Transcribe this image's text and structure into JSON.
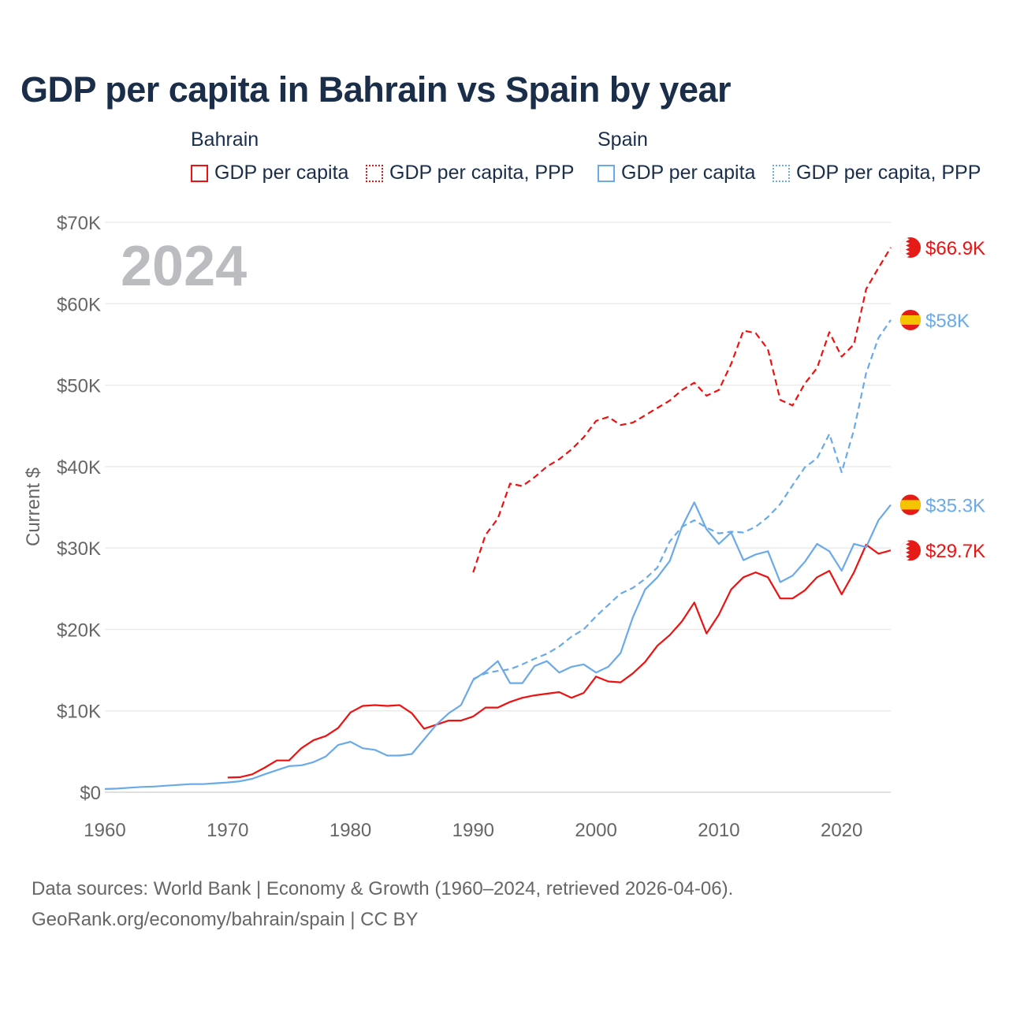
{
  "title": "GDP per capita in Bahrain vs Spain by year",
  "legend": {
    "groups": [
      {
        "name": "Bahrain",
        "items": [
          "GDP per capita",
          "GDP per capita, PPP"
        ]
      },
      {
        "name": "Spain",
        "items": [
          "GDP per capita",
          "GDP per capita, PPP"
        ]
      }
    ]
  },
  "footer": {
    "line1": "Data sources: World Bank | Economy & Growth (1960–2024, retrieved 2026-04-06).",
    "line2": "GeoRank.org/economy/bahrain/spain | CC BY"
  },
  "chart_data": {
    "type": "line",
    "title": "GDP per capita in Bahrain vs Spain by year",
    "year_label": "2024",
    "ylabel": "Current $",
    "xlim": [
      1960,
      2024
    ],
    "ylim": [
      0,
      70000
    ],
    "xticks": [
      1960,
      1970,
      1980,
      1990,
      2000,
      2010,
      2020
    ],
    "xtick_labels": [
      "1960",
      "1970",
      "1980",
      "1990",
      "2000",
      "2010",
      "2020"
    ],
    "yticks": [
      0,
      10000,
      20000,
      30000,
      40000,
      50000,
      60000,
      70000
    ],
    "ytick_labels": [
      "$0",
      "$10K",
      "$20K",
      "$30K",
      "$40K",
      "$50K",
      "$60K",
      "$70K"
    ],
    "grid": true,
    "legend_position": "top",
    "colors": {
      "bahrain": "#ee1111",
      "spain": "#6aaae8"
    },
    "series": [
      {
        "name": "Bahrain GDP per capita",
        "country": "bahrain",
        "dashed": false,
        "start": 1970,
        "end_label": "$29.7K",
        "values": [
          1.8,
          1.85,
          2.2,
          3.0,
          3.9,
          3.9,
          5.4,
          6.4,
          6.9,
          7.9,
          9.8,
          10.6,
          10.7,
          10.6,
          10.7,
          9.7,
          7.8,
          8.3,
          8.8,
          8.8,
          9.3,
          10.4,
          10.4,
          11.1,
          11.6,
          11.9,
          12.1,
          12.3,
          11.6,
          12.2,
          14.2,
          13.6,
          13.5,
          14.6,
          16.0,
          18.0,
          19.3,
          21.0,
          23.3,
          19.5,
          21.8,
          24.9,
          26.4,
          27.0,
          26.4,
          23.8,
          23.8,
          24.8,
          26.4,
          27.2,
          24.3,
          27.0,
          30.4,
          29.3,
          29.7
        ]
      },
      {
        "name": "Bahrain GDP per capita, PPP",
        "country": "bahrain",
        "dashed": true,
        "start": 1990,
        "end_label": "$66.9K",
        "values": [
          27.0,
          31.6,
          33.6,
          37.9,
          37.6,
          38.7,
          40.0,
          40.9,
          42.1,
          43.6,
          45.6,
          46.1,
          45.1,
          45.4,
          46.3,
          47.2,
          48.1,
          49.4,
          50.3,
          48.7,
          49.4,
          52.6,
          56.7,
          56.4,
          54.4,
          48.2,
          47.5,
          50.2,
          52.1,
          56.5,
          53.5,
          55.0,
          61.8,
          64.4,
          66.9
        ]
      },
      {
        "name": "Spain GDP per capita",
        "country": "spain",
        "dashed": false,
        "start": 1960,
        "end_label": "$35.3K",
        "values": [
          0.4,
          0.45,
          0.55,
          0.65,
          0.7,
          0.8,
          0.9,
          1.0,
          1.0,
          1.1,
          1.2,
          1.35,
          1.65,
          2.2,
          2.7,
          3.2,
          3.3,
          3.7,
          4.4,
          5.8,
          6.2,
          5.4,
          5.2,
          4.5,
          4.5,
          4.7,
          6.5,
          8.3,
          9.7,
          10.7,
          13.8,
          14.8,
          16.1,
          13.4,
          13.4,
          15.5,
          16.1,
          14.7,
          15.4,
          15.7,
          14.7,
          15.4,
          17.1,
          21.5,
          24.9,
          26.4,
          28.4,
          32.6,
          35.6,
          32.3,
          30.5,
          31.9,
          28.5,
          29.2,
          29.6,
          25.8,
          26.6,
          28.3,
          30.5,
          29.6,
          27.2,
          30.5,
          30.1,
          33.4,
          35.3
        ]
      },
      {
        "name": "Spain GDP per capita, PPP",
        "country": "spain",
        "dashed": true,
        "start": 1990,
        "end_label": "$58K",
        "values": [
          13.9,
          14.6,
          14.9,
          15.1,
          15.7,
          16.4,
          17.0,
          17.9,
          19.1,
          20.0,
          21.6,
          23.0,
          24.4,
          25.1,
          26.2,
          27.6,
          30.8,
          32.6,
          33.4,
          32.5,
          31.8,
          32.0,
          31.9,
          32.6,
          33.8,
          35.4,
          37.7,
          39.9,
          41.0,
          44.0,
          39.3,
          44.5,
          51.5,
          55.8,
          58.0
        ]
      }
    ],
    "value_unit": "thousand USD"
  }
}
